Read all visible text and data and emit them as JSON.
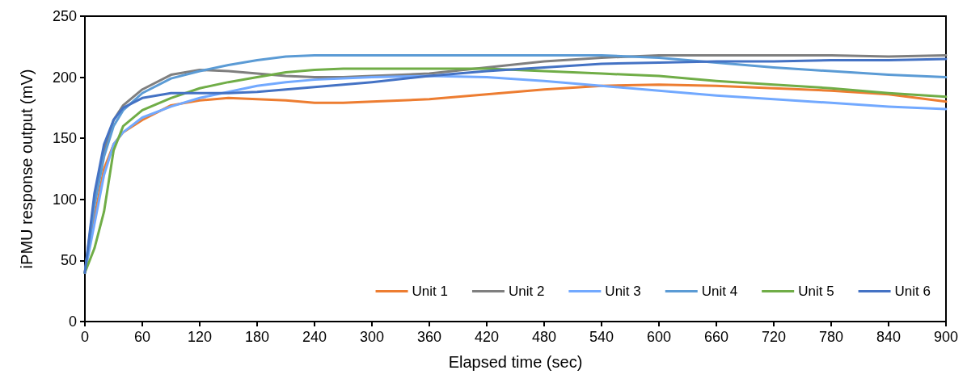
{
  "chart_data": {
    "type": "line",
    "xlabel": "Elapsed time (sec)",
    "ylabel": "iPMU response output (mV)",
    "x": [
      0,
      10,
      20,
      30,
      40,
      60,
      90,
      120,
      150,
      180,
      210,
      240,
      270,
      300,
      360,
      420,
      480,
      540,
      600,
      660,
      720,
      780,
      840,
      900
    ],
    "series": [
      {
        "name": "Unit 1",
        "color": "#ed7d31",
        "values": [
          40,
          85,
          125,
          145,
          155,
          165,
          177,
          181,
          183,
          182,
          181,
          179,
          179,
          180,
          182,
          186,
          190,
          193,
          194,
          193,
          191,
          189,
          186,
          180
        ]
      },
      {
        "name": "Unit 2",
        "color": "#7f7f7f",
        "values": [
          40,
          100,
          140,
          165,
          177,
          190,
          202,
          206,
          205,
          203,
          201,
          200,
          200,
          201,
          203,
          208,
          213,
          216,
          218,
          218,
          218,
          218,
          217,
          218
        ]
      },
      {
        "name": "Unit 3",
        "color": "#72a9ff",
        "values": [
          40,
          80,
          120,
          145,
          155,
          167,
          176,
          183,
          188,
          193,
          196,
          198,
          199,
          200,
          201,
          200,
          197,
          193,
          189,
          185,
          182,
          179,
          176,
          174
        ]
      },
      {
        "name": "Unit 4",
        "color": "#5b9bd5",
        "values": [
          40,
          95,
          135,
          160,
          173,
          187,
          199,
          205,
          210,
          214,
          217,
          218,
          218,
          218,
          218,
          218,
          218,
          218,
          216,
          212,
          208,
          205,
          202,
          200
        ]
      },
      {
        "name": "Unit 5",
        "color": "#70ad47",
        "values": [
          40,
          60,
          90,
          140,
          160,
          173,
          183,
          191,
          196,
          200,
          204,
          206,
          207,
          207,
          207,
          207,
          205,
          203,
          201,
          197,
          194,
          191,
          187,
          184
        ]
      },
      {
        "name": "Unit 6",
        "color": "#4472c4",
        "values": [
          40,
          105,
          145,
          165,
          175,
          183,
          187,
          187,
          187,
          188,
          190,
          192,
          194,
          196,
          201,
          205,
          208,
          211,
          212,
          213,
          213,
          214,
          214,
          215
        ]
      }
    ],
    "xlim": [
      0,
      900
    ],
    "xticks": [
      0,
      60,
      120,
      180,
      240,
      300,
      360,
      420,
      480,
      540,
      600,
      660,
      720,
      780,
      840,
      900
    ],
    "ylim": [
      0,
      250
    ],
    "yticks": [
      0,
      50,
      100,
      150,
      200,
      250
    ],
    "grid": false,
    "legend": "bottom right",
    "marker": "none",
    "line_style": "solid"
  }
}
